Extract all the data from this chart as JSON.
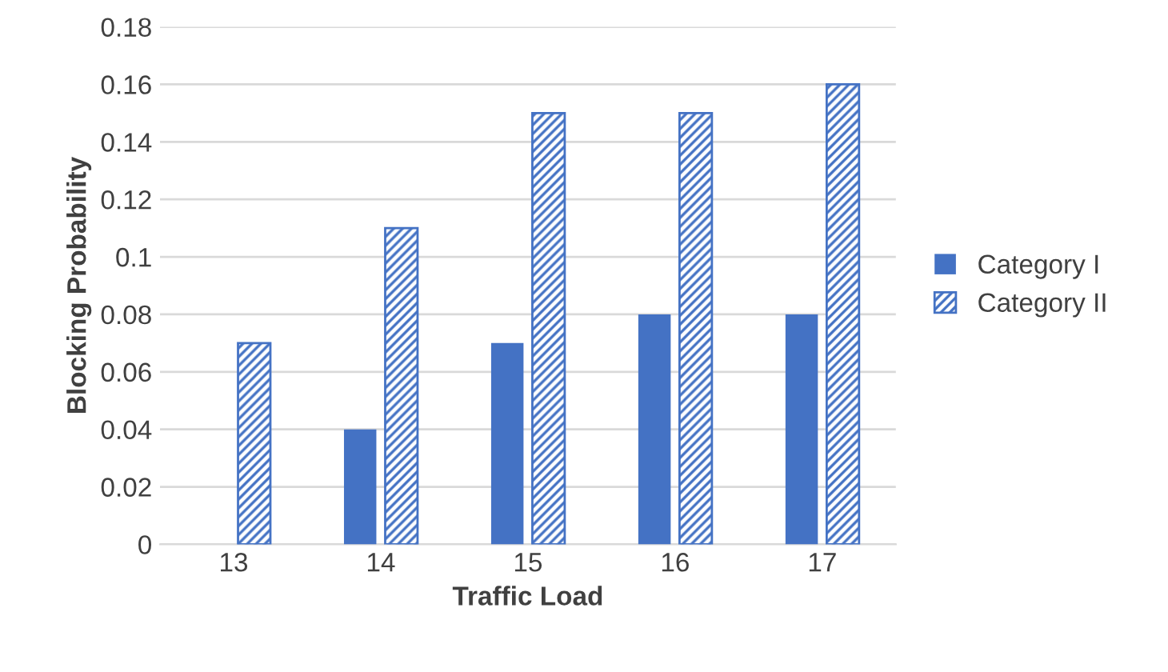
{
  "chart_data": {
    "type": "bar",
    "xlabel": "Traffic Load",
    "ylabel": "Blocking Probability",
    "categories": [
      "13",
      "14",
      "15",
      "16",
      "17"
    ],
    "series": [
      {
        "name": "Category I",
        "color": "#4472c4",
        "values": [
          0,
          0.04,
          0.07,
          0.08,
          0.08
        ]
      },
      {
        "name": "Category II",
        "color": "#4472c4",
        "values": [
          0.07,
          0.11,
          0.15,
          0.15,
          0.16
        ]
      }
    ],
    "ylim": [
      0,
      0.18
    ],
    "yticks": [
      0,
      0.02,
      0.04,
      0.06,
      0.08,
      0.1,
      0.12,
      0.14,
      0.16,
      0.18
    ],
    "grid": "y",
    "legend": "right"
  }
}
